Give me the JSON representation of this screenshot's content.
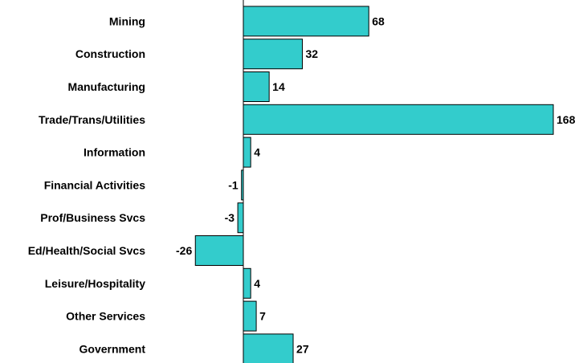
{
  "chart_data": {
    "type": "bar",
    "orientation": "horizontal",
    "categories": [
      "Mining",
      "Construction",
      "Manufacturing",
      "Trade/Trans/Utilities",
      "Information",
      "Financial Activities",
      "Prof/Business Svcs",
      "Ed/Health/Social Svcs",
      "Leisure/Hospitality",
      "Other Services",
      "Government"
    ],
    "values": [
      68,
      32,
      14,
      168,
      4,
      -1,
      -3,
      -26,
      4,
      7,
      27
    ],
    "data_labels": [
      "68",
      "32",
      "14",
      "168",
      "4",
      "-1",
      "-3",
      "-26",
      "4",
      "7",
      "27"
    ],
    "bar_color": "#33CCCC",
    "bar_edge_color": "#000000",
    "xlim": [
      -26,
      168
    ],
    "grid": false,
    "legend": "none"
  }
}
